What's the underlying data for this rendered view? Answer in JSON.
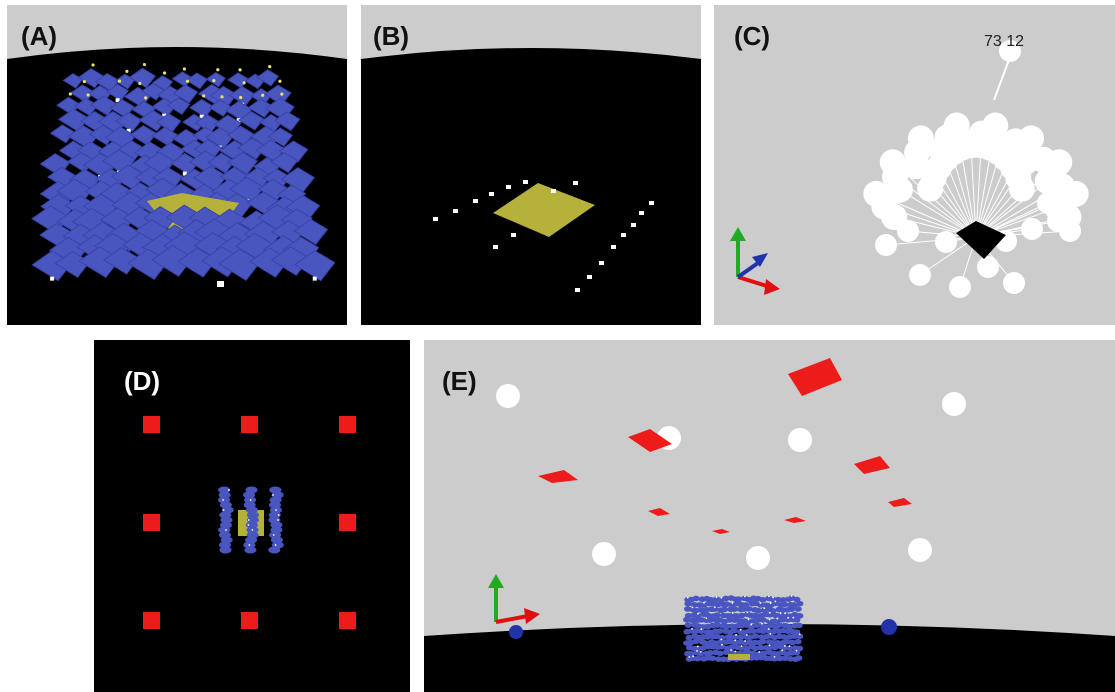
{
  "panels": {
    "a": {
      "label": "(A)"
    },
    "b": {
      "label": "(B)"
    },
    "c": {
      "label": "(C)",
      "annotation": "73 12"
    },
    "d": {
      "label": "(D)"
    },
    "e": {
      "label": "(E)"
    }
  },
  "colors": {
    "sky": "#cccccc",
    "ground": "#000000",
    "foliage": "#4a56c0",
    "sensor_patch": "#b5b13a",
    "light_source": "#ee1b1b",
    "marker": "#ffffff",
    "axis_x": "#e01010",
    "axis_y": "#22aa22",
    "axis_z": "#2233aa"
  }
}
